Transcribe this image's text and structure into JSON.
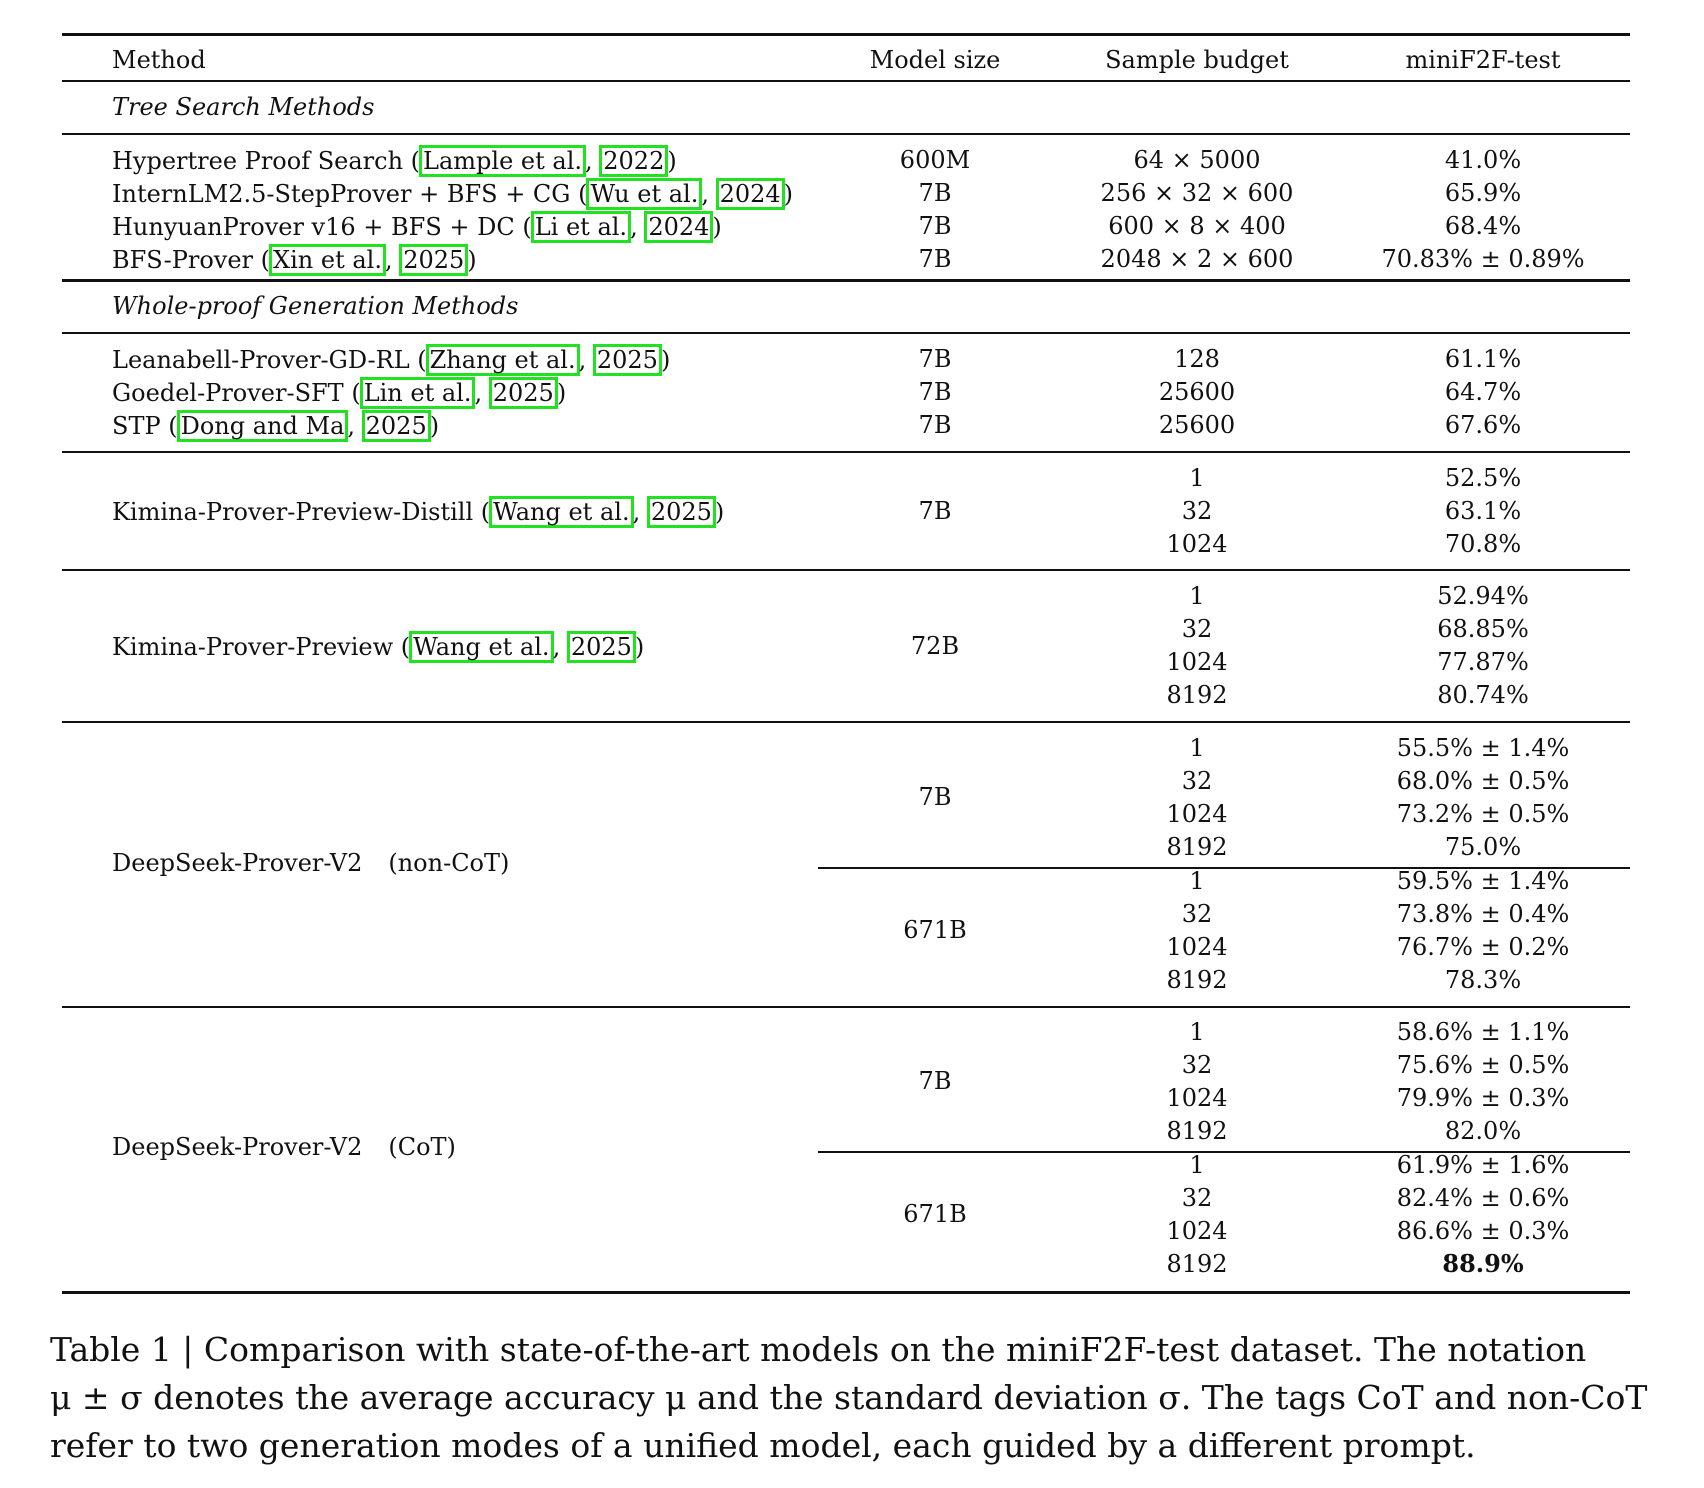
{
  "colors": {
    "citation_box": "#22e022",
    "text": "#111111"
  },
  "header": {
    "method": "Method",
    "model_size": "Model size",
    "sample_budget": "Sample budget",
    "minif2f": "miniF2F-test"
  },
  "sections": {
    "tree": "Tree Search Methods",
    "whole": "Whole-proof Generation Methods"
  },
  "tree_rows": [
    {
      "name": "Hypertree Proof Search (",
      "author": "Lample et al.",
      "sep": ", ",
      "year": "2022",
      "close": ")",
      "size": "600M",
      "budget": "64 × 5000",
      "score": "41.0%"
    },
    {
      "name": "InternLM2.5-StepProver + BFS + CG (",
      "author": "Wu et al.",
      "sep": ", ",
      "year": "2024",
      "close": ")",
      "size": "7B",
      "budget": "256 × 32 × 600",
      "score": "65.9%"
    },
    {
      "name": "HunyuanProver v16 + BFS + DC (",
      "author": "Li et al.",
      "sep": ", ",
      "year": "2024",
      "close": ")",
      "size": "7B",
      "budget": "600 × 8 × 400",
      "score": "68.4%"
    },
    {
      "name": "BFS-Prover (",
      "author": "Xin et al.",
      "sep": ", ",
      "year": "2025",
      "close": ")",
      "size": "7B",
      "budget": "2048 × 2 × 600",
      "score": "70.83% ± 0.89%"
    }
  ],
  "whole_rows": [
    {
      "name": "Leanabell-Prover-GD-RL (",
      "author": "Zhang et al.",
      "sep": ", ",
      "year": "2025",
      "close": ")",
      "size": "7B",
      "budget": "128",
      "score": "61.1%"
    },
    {
      "name": "Goedel-Prover-SFT (",
      "author": "Lin et al.",
      "sep": ", ",
      "year": "2025",
      "close": ")",
      "size": "7B",
      "budget": "25600",
      "score": "64.7%"
    },
    {
      "name": "STP (",
      "author": "Dong and Ma",
      "sep": ", ",
      "year": "2025",
      "close": ")",
      "size": "7B",
      "budget": "25600",
      "score": "67.6%"
    }
  ],
  "kimina_distill": {
    "name": "Kimina-Prover-Preview-Distill (",
    "author": "Wang et al.",
    "sep": ", ",
    "year": "2025",
    "close": ")",
    "size": "7B",
    "budgets": [
      "1",
      "32",
      "1024"
    ],
    "scores": [
      "52.5%",
      "63.1%",
      "70.8%"
    ]
  },
  "kimina": {
    "name": "Kimina-Prover-Preview (",
    "author": "Wang et al.",
    "sep": ", ",
    "year": "2025",
    "close": ")",
    "size": "72B",
    "budgets": [
      "1",
      "32",
      "1024",
      "8192"
    ],
    "scores": [
      "52.94%",
      "68.85%",
      "77.87%",
      "80.74%"
    ]
  },
  "ds_noncot": {
    "name": "DeepSeek-Prover-V2",
    "tag": "(non-CoT)",
    "groups": [
      {
        "size": "7B",
        "budgets": [
          "1",
          "32",
          "1024",
          "8192"
        ],
        "scores": [
          "55.5% ± 1.4%",
          "68.0% ± 0.5%",
          "73.2% ± 0.5%",
          "75.0%"
        ]
      },
      {
        "size": "671B",
        "budgets": [
          "1",
          "32",
          "1024",
          "8192"
        ],
        "scores": [
          "59.5% ± 1.4%",
          "73.8% ± 0.4%",
          "76.7% ± 0.2%",
          "78.3%"
        ]
      }
    ]
  },
  "ds_cot": {
    "name": "DeepSeek-Prover-V2",
    "tag": "(CoT)",
    "groups": [
      {
        "size": "7B",
        "budgets": [
          "1",
          "32",
          "1024",
          "8192"
        ],
        "scores": [
          "58.6% ± 1.1%",
          "75.6% ± 0.5%",
          "79.9% ± 0.3%",
          "82.0%"
        ]
      },
      {
        "size": "671B",
        "budgets": [
          "1",
          "32",
          "1024",
          "8192"
        ],
        "scores": [
          "61.9% ± 1.6%",
          "82.4% ± 0.6%",
          "86.6% ± 0.3%",
          "88.9%"
        ]
      }
    ]
  },
  "caption": {
    "line1": "Table 1 | Comparison with state-of-the-art models on the miniF2F-test dataset. The notation",
    "line2": "μ ± σ denotes the average accuracy μ and the standard deviation σ. The tags CoT and non-CoT",
    "line3": "refer to two generation modes of a unified model, each guided by a different prompt."
  }
}
